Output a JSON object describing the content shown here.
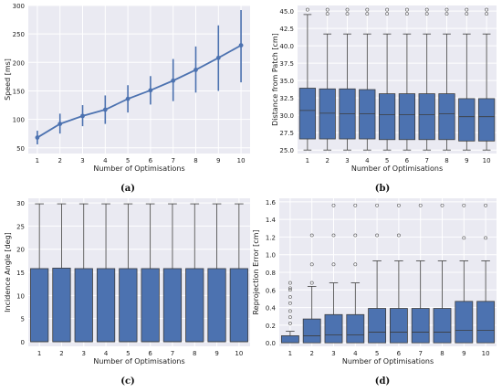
{
  "figure": {
    "panels": [
      {
        "caption": "(a)"
      },
      {
        "caption": "(b)"
      },
      {
        "caption": "(c)"
      },
      {
        "caption": "(d)"
      }
    ]
  },
  "colors": {
    "panel_bg": "#EAEAF2",
    "grid": "#ffffff",
    "series": "#4C72B0",
    "box_edge": "#3d3d3d"
  },
  "chart_data": [
    {
      "type": "line",
      "title": "",
      "xlabel": "Number of Optimisations",
      "ylabel": "Speed [ms]",
      "x": [
        1,
        2,
        3,
        4,
        5,
        6,
        7,
        8,
        9,
        10
      ],
      "xlim": [
        0.6,
        10.4
      ],
      "ylim": [
        40,
        300
      ],
      "yticks": [
        50,
        100,
        150,
        200,
        250,
        300
      ],
      "grid": true,
      "series": [
        {
          "values": [
            68,
            92,
            106,
            117,
            136,
            151,
            168,
            187,
            208,
            230
          ],
          "error_low": [
            56,
            75,
            88,
            92,
            112,
            126,
            132,
            147,
            150,
            165
          ],
          "error_high": [
            80,
            110,
            125,
            142,
            160,
            176,
            206,
            228,
            265,
            292
          ]
        }
      ]
    },
    {
      "type": "box",
      "title": "",
      "xlabel": "Number of Optimisations",
      "ylabel": "Distance from Patch [cm]",
      "categories": [
        "1",
        "2",
        "3",
        "4",
        "5",
        "6",
        "7",
        "8",
        "9",
        "10"
      ],
      "ylim": [
        24.5,
        45.8
      ],
      "yticks": [
        25.0,
        27.5,
        30.0,
        32.5,
        35.0,
        37.5,
        40.0,
        42.5,
        45.0
      ],
      "grid": true,
      "boxes": [
        {
          "min": 25.0,
          "q1": 26.6,
          "median": 30.7,
          "q3": 33.9,
          "max": 44.5,
          "outliers": [
            45.2
          ]
        },
        {
          "min": 25.0,
          "q1": 26.6,
          "median": 30.3,
          "q3": 33.8,
          "max": 41.7,
          "outliers": [
            44.6,
            45.2
          ]
        },
        {
          "min": 25.0,
          "q1": 26.6,
          "median": 30.2,
          "q3": 33.8,
          "max": 41.7,
          "outliers": [
            44.6,
            45.2
          ]
        },
        {
          "min": 25.0,
          "q1": 26.6,
          "median": 30.2,
          "q3": 33.7,
          "max": 41.7,
          "outliers": [
            44.6,
            45.2
          ]
        },
        {
          "min": 25.0,
          "q1": 26.5,
          "median": 30.1,
          "q3": 33.1,
          "max": 41.7,
          "outliers": [
            44.6,
            45.2
          ]
        },
        {
          "min": 25.0,
          "q1": 26.5,
          "median": 30.1,
          "q3": 33.1,
          "max": 41.7,
          "outliers": [
            44.6,
            45.2
          ]
        },
        {
          "min": 25.0,
          "q1": 26.5,
          "median": 30.1,
          "q3": 33.1,
          "max": 41.7,
          "outliers": [
            44.6,
            45.2
          ]
        },
        {
          "min": 25.0,
          "q1": 26.5,
          "median": 30.2,
          "q3": 33.1,
          "max": 41.7,
          "outliers": [
            44.6,
            45.2
          ]
        },
        {
          "min": 25.0,
          "q1": 26.3,
          "median": 29.8,
          "q3": 32.4,
          "max": 41.7,
          "outliers": [
            44.6,
            45.2
          ]
        },
        {
          "min": 25.0,
          "q1": 26.3,
          "median": 29.8,
          "q3": 32.4,
          "max": 41.7,
          "outliers": [
            44.6,
            45.2
          ]
        }
      ]
    },
    {
      "type": "box",
      "title": "",
      "xlabel": "Number of Optimisations",
      "ylabel": "Incidence Angle [deg]",
      "categories": [
        "1",
        "2",
        "3",
        "4",
        "5",
        "6",
        "7",
        "8",
        "9",
        "10"
      ],
      "ylim": [
        -1,
        31
      ],
      "yticks": [
        0,
        5,
        10,
        15,
        20,
        25,
        30
      ],
      "grid": true,
      "boxes": [
        {
          "min": 0,
          "q1": 0,
          "median": 0,
          "q3": 15.8,
          "max": 29.8,
          "outliers": []
        },
        {
          "min": 0,
          "q1": 0,
          "median": 0,
          "q3": 15.9,
          "max": 29.8,
          "outliers": []
        },
        {
          "min": 0,
          "q1": 0,
          "median": 0,
          "q3": 15.8,
          "max": 29.8,
          "outliers": []
        },
        {
          "min": 0,
          "q1": 0,
          "median": 0,
          "q3": 15.8,
          "max": 29.8,
          "outliers": []
        },
        {
          "min": 0,
          "q1": 0,
          "median": 0,
          "q3": 15.8,
          "max": 29.8,
          "outliers": []
        },
        {
          "min": 0,
          "q1": 0,
          "median": 0,
          "q3": 15.8,
          "max": 29.8,
          "outliers": []
        },
        {
          "min": 0,
          "q1": 0,
          "median": 0,
          "q3": 15.8,
          "max": 29.8,
          "outliers": []
        },
        {
          "min": 0,
          "q1": 0,
          "median": 0,
          "q3": 15.8,
          "max": 29.8,
          "outliers": []
        },
        {
          "min": 0,
          "q1": 0,
          "median": 0,
          "q3": 15.8,
          "max": 29.8,
          "outliers": []
        },
        {
          "min": 0,
          "q1": 0,
          "median": 0,
          "q3": 15.8,
          "max": 29.8,
          "outliers": []
        }
      ]
    },
    {
      "type": "box",
      "title": "",
      "xlabel": "Number of Optimisations",
      "ylabel": "Reprojection Error [cm]",
      "categories": [
        "1",
        "2",
        "3",
        "4",
        "5",
        "6",
        "7",
        "8",
        "9",
        "10"
      ],
      "ylim": [
        -0.04,
        1.64
      ],
      "yticks": [
        0.0,
        0.2,
        0.4,
        0.6,
        0.8,
        1.0,
        1.2,
        1.4,
        1.6
      ],
      "grid": true,
      "boxes": [
        {
          "min": 0,
          "q1": 0,
          "median": 0,
          "q3": 0.08,
          "max": 0.13,
          "outliers": [
            0.22,
            0.29,
            0.36,
            0.45,
            0.52,
            0.6,
            0.62,
            0.68
          ]
        },
        {
          "min": 0,
          "q1": 0,
          "median": 0.08,
          "q3": 0.27,
          "max": 0.64,
          "outliers": [
            0.68,
            0.89,
            1.22
          ]
        },
        {
          "min": 0,
          "q1": 0,
          "median": 0.09,
          "q3": 0.32,
          "max": 0.68,
          "outliers": [
            0.89,
            1.22,
            1.56
          ]
        },
        {
          "min": 0,
          "q1": 0,
          "median": 0.09,
          "q3": 0.32,
          "max": 0.68,
          "outliers": [
            0.89,
            1.22,
            1.56
          ]
        },
        {
          "min": 0,
          "q1": 0,
          "median": 0.12,
          "q3": 0.39,
          "max": 0.93,
          "outliers": [
            1.22,
            1.56
          ]
        },
        {
          "min": 0,
          "q1": 0,
          "median": 0.12,
          "q3": 0.39,
          "max": 0.93,
          "outliers": [
            1.22,
            1.56
          ]
        },
        {
          "min": 0,
          "q1": 0,
          "median": 0.12,
          "q3": 0.39,
          "max": 0.93,
          "outliers": [
            1.56
          ]
        },
        {
          "min": 0,
          "q1": 0,
          "median": 0.12,
          "q3": 0.39,
          "max": 0.93,
          "outliers": [
            1.56
          ]
        },
        {
          "min": 0,
          "q1": 0,
          "median": 0.14,
          "q3": 0.47,
          "max": 0.93,
          "outliers": [
            1.19,
            1.56
          ]
        },
        {
          "min": 0,
          "q1": 0,
          "median": 0.14,
          "q3": 0.47,
          "max": 0.93,
          "outliers": [
            1.19,
            1.56
          ]
        }
      ]
    }
  ]
}
